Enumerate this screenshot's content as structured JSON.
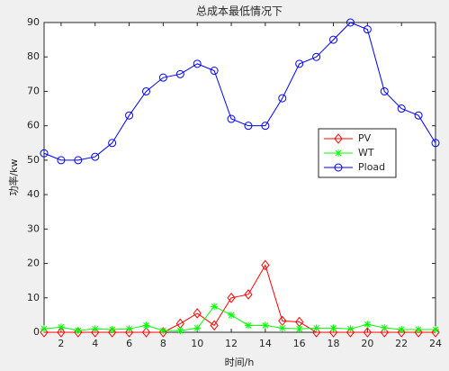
{
  "chart_data": {
    "type": "line",
    "title": "总成本最低情况下",
    "x_label": "时间/h",
    "y_label": "功率/kw",
    "x": [
      1,
      2,
      3,
      4,
      5,
      6,
      7,
      8,
      9,
      10,
      11,
      12,
      13,
      14,
      15,
      16,
      17,
      18,
      19,
      20,
      21,
      22,
      23,
      24
    ],
    "series": [
      {
        "name": "PV",
        "color": "#ff0000",
        "marker": "diamond",
        "values": [
          0,
          0,
          0,
          0,
          0,
          0,
          0,
          0,
          2.5,
          5.5,
          2,
          10,
          11,
          19.5,
          3.3,
          3,
          0,
          0,
          0,
          0,
          0,
          0,
          0,
          0
        ]
      },
      {
        "name": "WT",
        "color": "#00ff00",
        "marker": "asterisk",
        "values": [
          1,
          1.5,
          0.5,
          1,
          0.8,
          1,
          2,
          0.5,
          0.5,
          1.2,
          7.5,
          5,
          2,
          2,
          1.2,
          1,
          1.2,
          1.2,
          1,
          2.3,
          1.3,
          0.8,
          0.8,
          0.8
        ]
      },
      {
        "name": "Pload",
        "color": "#0000ff",
        "marker": "circle",
        "values": [
          52,
          50,
          50,
          51,
          55,
          63,
          70,
          74,
          75,
          78,
          76,
          62,
          60,
          60,
          68,
          78,
          80,
          85,
          90,
          88,
          70,
          65,
          63,
          55
        ]
      }
    ],
    "xlim": [
      1,
      24
    ],
    "xticks": [
      2,
      4,
      6,
      8,
      10,
      12,
      14,
      16,
      18,
      20,
      22,
      24
    ],
    "ylim": [
      0,
      90
    ],
    "yticks": [
      0,
      10,
      20,
      30,
      40,
      50,
      60,
      70,
      80,
      90
    ],
    "legend_loc": "east"
  }
}
